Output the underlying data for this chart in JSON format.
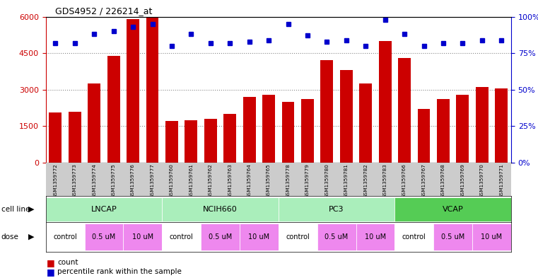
{
  "title": "GDS4952 / 226214_at",
  "samples": [
    "GSM1359772",
    "GSM1359773",
    "GSM1359774",
    "GSM1359775",
    "GSM1359776",
    "GSM1359777",
    "GSM1359760",
    "GSM1359761",
    "GSM1359762",
    "GSM1359763",
    "GSM1359764",
    "GSM1359765",
    "GSM1359778",
    "GSM1359779",
    "GSM1359780",
    "GSM1359781",
    "GSM1359782",
    "GSM1359783",
    "GSM1359766",
    "GSM1359767",
    "GSM1359768",
    "GSM1359769",
    "GSM1359770",
    "GSM1359771"
  ],
  "counts": [
    2050,
    2100,
    3250,
    4400,
    5900,
    5950,
    1700,
    1750,
    1800,
    2000,
    2700,
    2800,
    2500,
    2600,
    4200,
    3800,
    3250,
    5000,
    4300,
    2200,
    2600,
    2800,
    3100,
    3050
  ],
  "percentiles": [
    82,
    82,
    88,
    90,
    93,
    95,
    80,
    88,
    82,
    82,
    83,
    84,
    95,
    87,
    83,
    84,
    80,
    98,
    88,
    80,
    82,
    82,
    84,
    84
  ],
  "bar_color": "#cc0000",
  "dot_color": "#0000cc",
  "grid_color": "#888888",
  "tick_color_left": "#cc0000",
  "tick_color_right": "#0000cc",
  "cell_lines": [
    "LNCAP",
    "NCIH660",
    "PC3",
    "VCAP"
  ],
  "cell_line_spans": [
    [
      0,
      6
    ],
    [
      6,
      12
    ],
    [
      12,
      18
    ],
    [
      18,
      24
    ]
  ],
  "cell_colors": [
    "#aaeebb",
    "#aaeebb",
    "#aaeebb",
    "#55cc55"
  ],
  "dose_definitions": [
    [
      0,
      2,
      "control",
      "#ffffff"
    ],
    [
      2,
      4,
      "0.5 uM",
      "#ee88ee"
    ],
    [
      4,
      6,
      "10 uM",
      "#ee88ee"
    ],
    [
      6,
      8,
      "control",
      "#ffffff"
    ],
    [
      8,
      10,
      "0.5 uM",
      "#ee88ee"
    ],
    [
      10,
      12,
      "10 uM",
      "#ee88ee"
    ],
    [
      12,
      14,
      "control",
      "#ffffff"
    ],
    [
      14,
      16,
      "0.5 uM",
      "#ee88ee"
    ],
    [
      16,
      18,
      "10 uM",
      "#ee88ee"
    ],
    [
      18,
      20,
      "control",
      "#ffffff"
    ],
    [
      20,
      22,
      "0.5 uM",
      "#ee88ee"
    ],
    [
      22,
      24,
      "10 uM",
      "#ee88ee"
    ]
  ]
}
